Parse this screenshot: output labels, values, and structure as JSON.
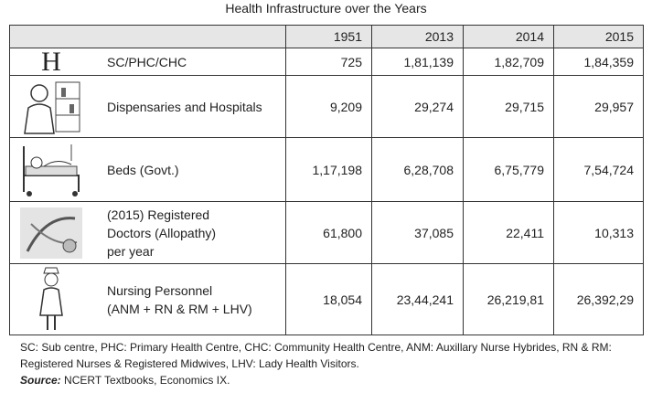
{
  "title": "Health Infrastructure over the Years",
  "table": {
    "header": [
      "",
      "1951",
      "2013",
      "2014",
      "2015"
    ],
    "rows": [
      {
        "icon": "H",
        "label": [
          "SC/PHC/CHC"
        ],
        "values": [
          "725",
          "1,81,139",
          "1,82,709",
          "1,84,359"
        ]
      },
      {
        "label": [
          "Dispensaries and Hospitals"
        ],
        "values": [
          "9,209",
          "29,274",
          "29,715",
          "29,957"
        ]
      },
      {
        "label": [
          "Beds (Govt.)"
        ],
        "values": [
          "1,17,198",
          "6,28,708",
          "6,75,779",
          "7,54,724"
        ]
      },
      {
        "label": [
          "(2015) Registered",
          "Doctors (Allopathy)",
          "per year"
        ],
        "values": [
          "61,800",
          "37,085",
          "22,411",
          "10,313"
        ]
      },
      {
        "label": [
          "Nursing Personnel",
          "(ANM + RN & RM + LHV)"
        ],
        "values": [
          "18,054",
          "23,44,241",
          "26,219,81",
          "26,392,29"
        ]
      }
    ]
  },
  "notes": [
    "SC: Sub centre, PHC: Primary Health Centre, CHC: Community Health Centre, ANM: Auxillary Nurse Hybrides, RN & RM:",
    "Registered Nurses & Registered Midwives, LHV: Lady Health Visitors."
  ],
  "source": {
    "label": "Source:",
    "text": "NCERT Textbooks, Economics IX."
  }
}
